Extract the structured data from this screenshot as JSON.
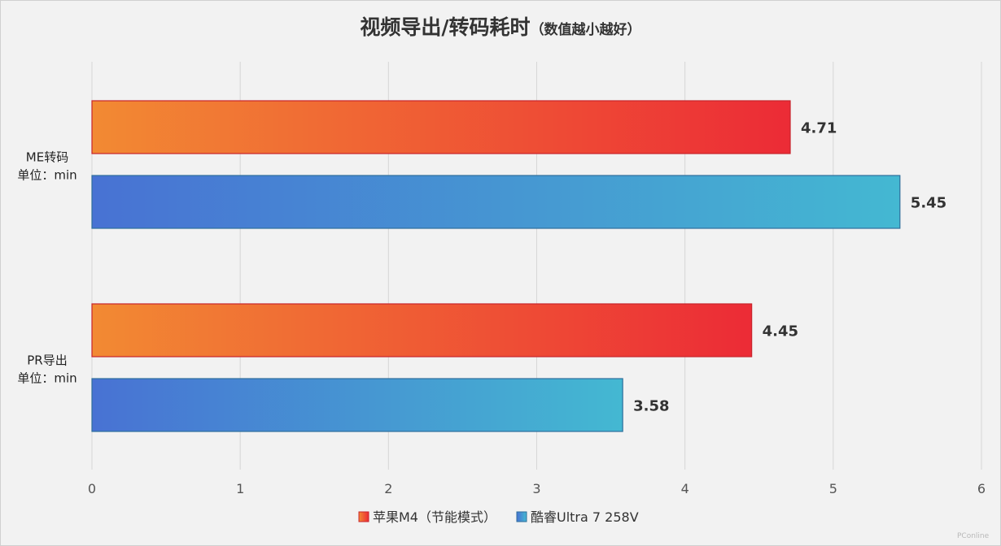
{
  "chart_data": {
    "type": "bar",
    "orientation": "horizontal",
    "title": "视频导出/转码耗时",
    "subtitle": "（数值越小越好）",
    "categories": [
      [
        "ME转码",
        "单位：min"
      ],
      [
        "PR导出",
        "单位：min"
      ]
    ],
    "series": [
      {
        "name": "苹果M4（节能模式）",
        "values": [
          4.71,
          4.45
        ],
        "gradient": [
          "#f28a33",
          "#ec2b36"
        ],
        "stroke": "#c8242c"
      },
      {
        "name": "酷睿Ultra 7 258V",
        "values": [
          5.45,
          3.58
        ],
        "gradient": [
          "#4872d3",
          "#44b8d2"
        ],
        "stroke": "#2f6f9c"
      }
    ],
    "xlim": [
      0,
      6
    ],
    "xticks": [
      0,
      1,
      2,
      3,
      4,
      5,
      6
    ],
    "grid": true,
    "legend_position": "bottom",
    "watermark": "PConline"
  }
}
